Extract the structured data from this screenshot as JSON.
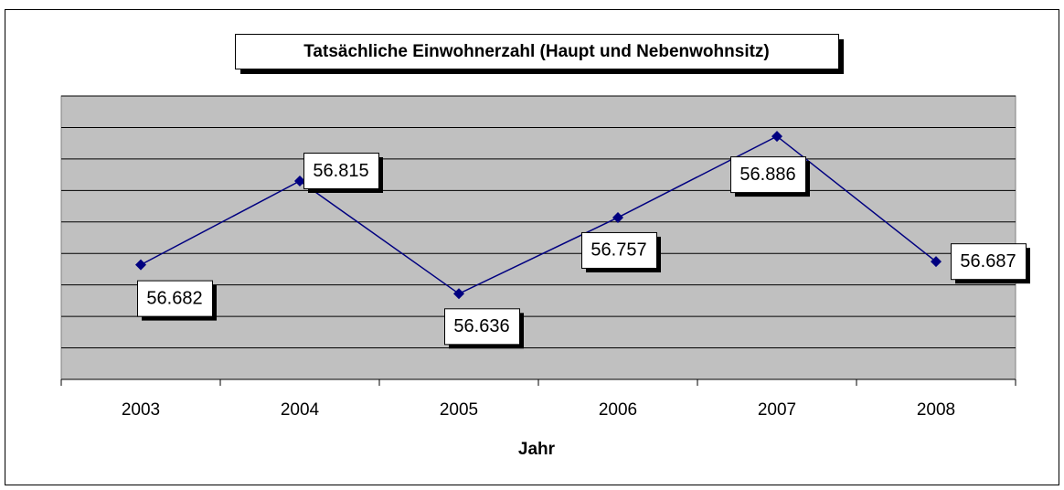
{
  "chart_data": {
    "type": "line",
    "title": "Tatsächliche Einwohnerzahl (Haupt und Nebenwohnsitz)",
    "x_label": "Jahr",
    "categories": [
      "2003",
      "2004",
      "2005",
      "2006",
      "2007",
      "2008"
    ],
    "series": [
      {
        "color": "#000080",
        "values": [
          56682,
          56815,
          56636,
          56757,
          56886,
          56687
        ],
        "value_labels": [
          "56.682",
          "56.815",
          "56.636",
          "56.757",
          "56.886",
          "56.687"
        ]
      }
    ],
    "ylim": [
      56500,
      56950
    ],
    "yticks": [
      56500,
      56550,
      56600,
      56650,
      56700,
      56750,
      56800,
      56850,
      56900,
      56950
    ],
    "grid": true
  }
}
